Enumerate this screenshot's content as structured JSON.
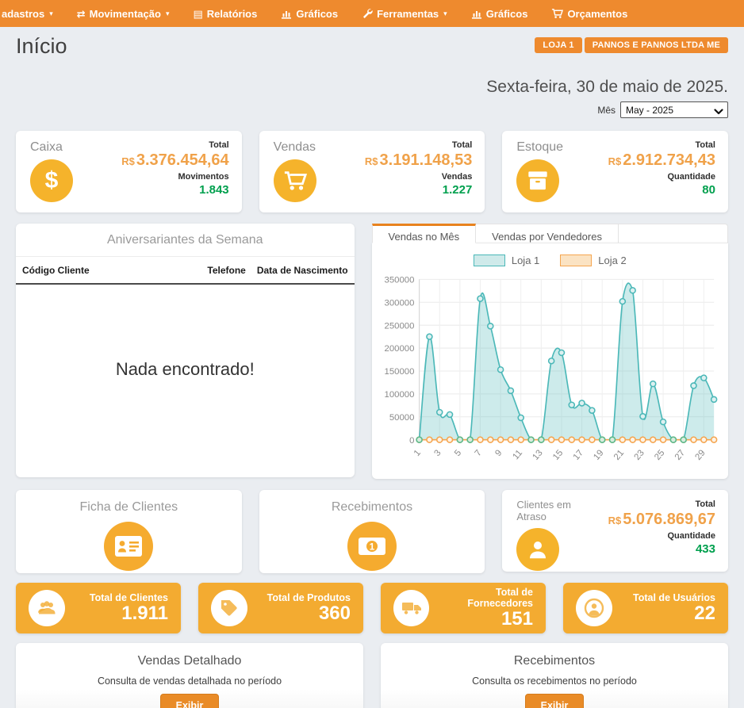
{
  "nav": {
    "items": [
      {
        "label": "adastros",
        "icon": "none",
        "caret": true
      },
      {
        "label": "Movimentação",
        "icon": "swap-icon",
        "caret": true
      },
      {
        "label": "Relatórios",
        "icon": "report-icon",
        "caret": false
      },
      {
        "label": "Gráficos",
        "icon": "bar-chart-icon",
        "caret": false
      },
      {
        "label": "Ferramentas",
        "icon": "wrench-icon",
        "caret": true
      },
      {
        "label": "Gráficos",
        "icon": "bar-chart-icon",
        "caret": false
      },
      {
        "label": "Orçamentos",
        "icon": "cart-icon",
        "caret": false
      }
    ]
  },
  "header": {
    "title": "Início",
    "store_badge": "LOJA 1",
    "company_badge": "PANNOS E PANNOS LTDA ME",
    "date": "Sexta-feira, 30 de maio de 2025.",
    "month_label": "Mês",
    "month_value": "May - 2025"
  },
  "summary_cards": [
    {
      "title": "Caixa",
      "icon": "dollar-icon",
      "total_label": "Total",
      "currency": "R$",
      "total_value": "3.376.454,64",
      "count_label": "Movimentos",
      "count_value": "1.843"
    },
    {
      "title": "Vendas",
      "icon": "cart-icon",
      "total_label": "Total",
      "currency": "R$",
      "total_value": "3.191.148,53",
      "count_label": "Vendas",
      "count_value": "1.227"
    },
    {
      "title": "Estoque",
      "icon": "box-icon",
      "total_label": "Total",
      "currency": "R$",
      "total_value": "2.912.734,43",
      "count_label": "Quantidade",
      "count_value": "80"
    }
  ],
  "birthdays": {
    "title": "Aniversariantes da Semana",
    "columns": [
      "Código Cliente",
      "Telefone",
      "Data de Nascimento"
    ],
    "empty_message": "Nada encontrado!"
  },
  "sales_tabs": {
    "tabs": [
      "Vendas no Mês",
      "Vendas por Vendedores"
    ],
    "active": 0
  },
  "chart_data": {
    "type": "area",
    "title": "",
    "xlabel": "",
    "ylabel": "",
    "x": [
      1,
      2,
      3,
      4,
      5,
      6,
      7,
      8,
      9,
      10,
      11,
      12,
      13,
      14,
      15,
      16,
      17,
      18,
      19,
      20,
      21,
      22,
      23,
      24,
      25,
      26,
      27,
      28,
      29,
      30
    ],
    "series": [
      {
        "name": "Loja 1",
        "color": "#4bb8b8",
        "fill": "rgba(91,189,189,0.30)",
        "values": [
          0,
          225000,
          60000,
          55000,
          0,
          0,
          308000,
          248000,
          153000,
          107000,
          48000,
          0,
          0,
          172000,
          190000,
          76000,
          80000,
          64000,
          0,
          0,
          302000,
          326000,
          51000,
          122000,
          39000,
          0,
          0,
          118000,
          135000,
          88000
        ]
      },
      {
        "name": "Loja 2",
        "color": "#f5a54f",
        "fill": "rgba(245,165,79,0.25)",
        "values": [
          0,
          0,
          0,
          0,
          0,
          0,
          0,
          0,
          0,
          0,
          0,
          0,
          0,
          0,
          0,
          0,
          0,
          0,
          0,
          0,
          0,
          0,
          0,
          0,
          0,
          0,
          0,
          0,
          0,
          0
        ]
      }
    ],
    "ylim": [
      0,
      350000
    ],
    "ytick_step": 50000,
    "xtick_every_odd": true,
    "grid": true,
    "legend_position": "top"
  },
  "feature_cards": [
    {
      "title": "Ficha de Clientes",
      "icon": "id-card-icon"
    },
    {
      "title": "Recebimentos",
      "icon": "money-bill-icon"
    }
  ],
  "overdue_card": {
    "title": "Clientes em Atraso",
    "icon": "person-icon",
    "total_label": "Total",
    "currency": "R$",
    "total_value": "5.076.869,67",
    "count_label": "Quantidade",
    "count_value": "433"
  },
  "stat_cards": [
    {
      "label": "Total de Clientes",
      "value": "1.911",
      "icon": "users-group-icon"
    },
    {
      "label": "Total de Produtos",
      "value": "360",
      "icon": "tag-icon"
    },
    {
      "label": "Total de Fornecedores",
      "value": "151",
      "icon": "truck-icon"
    },
    {
      "label": "Total de Usuários",
      "value": "22",
      "icon": "user-circle-icon"
    }
  ],
  "report_cards": [
    {
      "title": "Vendas Detalhado",
      "description": "Consulta de vendas detalhada no período",
      "button_label": "Exibir"
    },
    {
      "title": "Recebimentos",
      "description": "Consulta os recebimentos no período",
      "button_label": "Exibir"
    }
  ],
  "colors": {
    "nav_orange": "#ee8a2e",
    "icon_yellow": "#f5b32b",
    "value_orange": "#f0a24a",
    "positive_green": "#00a04e",
    "stat_card_bg": "#f3ab31",
    "chart_teal": "#4bb8b8",
    "chart_orange": "#f5a54f",
    "page_bg": "#eaedf1"
  }
}
